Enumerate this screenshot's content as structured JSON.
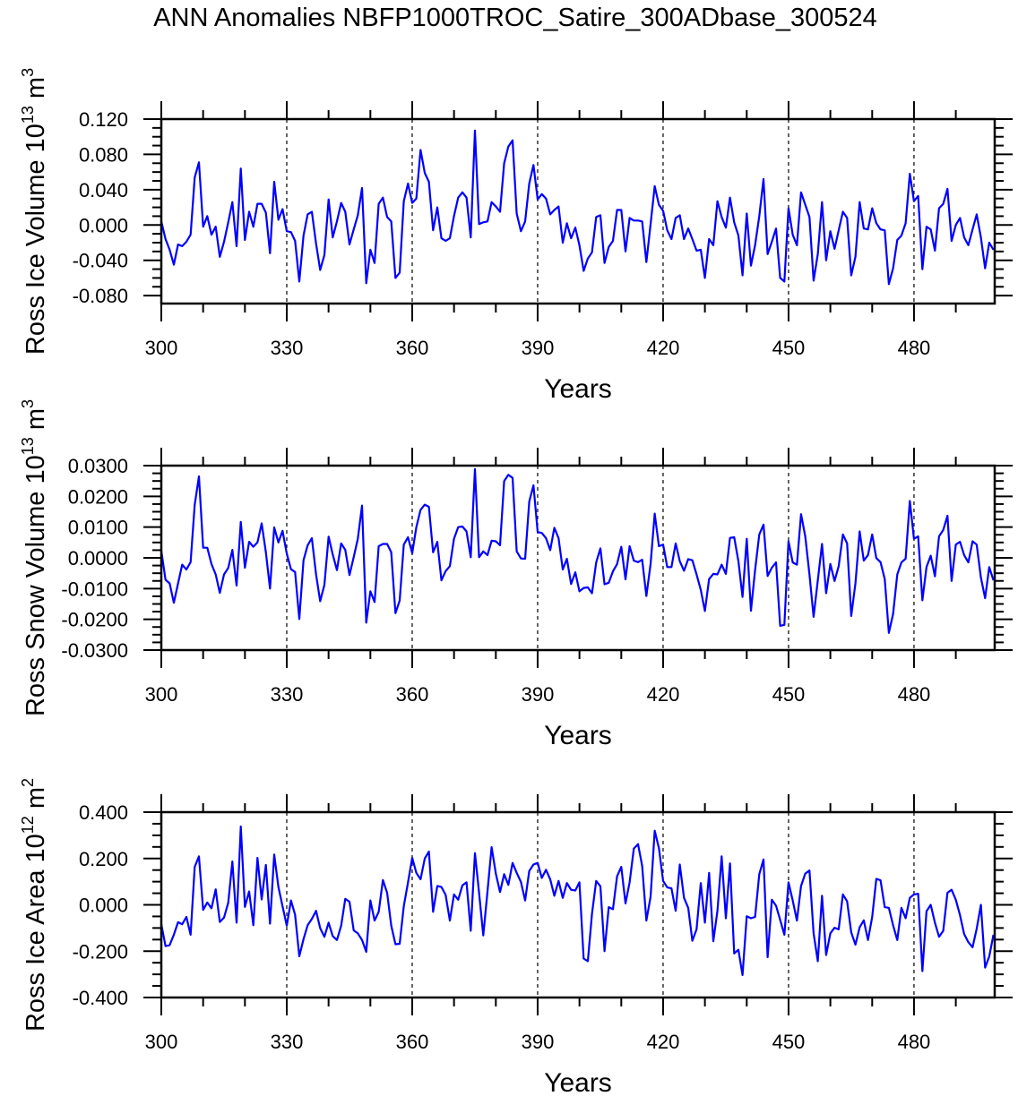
{
  "title": "ANN Anomalies NBFP1000TROC_Satire_300ADbase_300524",
  "colors": {
    "line": "#0000ff",
    "axes": "#000000",
    "refline": "#000000"
  },
  "chart_data": [
    {
      "type": "line",
      "title": "ANN Anomalies NBFP1000TROC_Satire_300ADbase_300524",
      "xlabel": "Years",
      "ylabel": "Ross Ice Volume 10^13 m^3",
      "ylabel_parts": {
        "text": "Ross Ice Volume 10",
        "exp1": "13",
        "unit": " m",
        "exp2": "3"
      },
      "x_start": 300,
      "x_step": 1,
      "xlim": [
        300,
        499.3
      ],
      "ylim": [
        -0.089,
        0.12
      ],
      "xticks": [
        300,
        330,
        360,
        390,
        420,
        450,
        480
      ],
      "xtick_labels": [
        "300",
        "330",
        "360",
        "390",
        "420",
        "450",
        "480"
      ],
      "x_minor_step": 10,
      "yticks": [
        -0.08,
        -0.04,
        0.0,
        0.04,
        0.08,
        0.12
      ],
      "ytick_labels": [
        "-0.080",
        "-0.040",
        "0.000",
        "0.040",
        "0.080",
        "0.120"
      ],
      "y_minor_step": 0.01,
      "ref_lines_x": [
        330,
        360,
        390,
        420,
        450,
        480
      ],
      "values": [
        0.004,
        -0.016,
        -0.028,
        -0.045,
        -0.022,
        -0.024,
        -0.019,
        -0.011,
        0.054,
        0.071,
        -0.002,
        0.01,
        -0.011,
        -0.002,
        -0.036,
        -0.019,
        0.003,
        0.026,
        -0.024,
        0.064,
        -0.017,
        0.015,
        -0.002,
        0.024,
        0.024,
        0.014,
        -0.032,
        0.049,
        0.006,
        0.018,
        -0.007,
        -0.008,
        -0.018,
        -0.064,
        -0.012,
        0.012,
        0.015,
        -0.021,
        -0.051,
        -0.034,
        0.029,
        -0.014,
        0.004,
        0.025,
        0.015,
        -0.022,
        -0.005,
        0.011,
        0.042,
        -0.066,
        -0.028,
        -0.043,
        0.024,
        0.031,
        0.009,
        0.004,
        -0.06,
        -0.054,
        0.027,
        0.047,
        0.025,
        0.03,
        0.085,
        0.059,
        0.049,
        -0.006,
        0.02,
        -0.015,
        -0.018,
        -0.015,
        0.01,
        0.031,
        0.037,
        0.031,
        -0.014,
        0.107,
        0.001,
        0.003,
        0.004,
        0.026,
        0.021,
        0.015,
        0.07,
        0.089,
        0.096,
        0.013,
        -0.007,
        0.004,
        0.047,
        0.068,
        0.029,
        0.035,
        0.03,
        0.012,
        0.017,
        0.021,
        -0.02,
        0.002,
        -0.015,
        -0.003,
        -0.023,
        -0.052,
        -0.038,
        -0.031,
        0.009,
        0.011,
        -0.043,
        -0.025,
        -0.018,
        0.017,
        0.017,
        -0.03,
        0.008,
        0.005,
        0.005,
        0.004,
        -0.042,
        0.001,
        0.044,
        0.023,
        0.016,
        -0.006,
        -0.016,
        0.008,
        0.011,
        -0.016,
        -0.004,
        -0.016,
        -0.029,
        -0.028,
        -0.06,
        -0.016,
        -0.023,
        0.027,
        0.009,
        -0.003,
        0.031,
        0.003,
        -0.012,
        -0.057,
        0.013,
        -0.046,
        -0.023,
        0.01,
        0.052,
        -0.033,
        -0.019,
        -0.004,
        -0.06,
        -0.064,
        0.019,
        -0.011,
        -0.023,
        0.037,
        0.023,
        0.009,
        -0.063,
        -0.033,
        0.026,
        -0.04,
        -0.007,
        -0.027,
        -0.006,
        0.015,
        0.008,
        -0.057,
        -0.036,
        0.026,
        -0.004,
        -0.005,
        0.019,
        0.002,
        -0.005,
        -0.006,
        -0.067,
        -0.049,
        -0.017,
        -0.012,
        0.002,
        0.058,
        0.027,
        0.033,
        -0.05,
        -0.002,
        -0.005,
        -0.029,
        0.019,
        0.024,
        0.041,
        -0.018,
        0.0,
        0.008,
        -0.014,
        -0.023,
        -0.005,
        0.012,
        -0.014,
        -0.049,
        -0.02,
        -0.028
      ]
    },
    {
      "type": "line",
      "xlabel": "Years",
      "ylabel": "Ross Snow Volume 10^13 m^3",
      "ylabel_parts": {
        "text": "Ross Snow Volume 10",
        "exp1": "13",
        "unit": " m",
        "exp2": "3"
      },
      "x_start": 300,
      "x_step": 1,
      "xlim": [
        300,
        499.3
      ],
      "ylim": [
        -0.03,
        0.03
      ],
      "xticks": [
        300,
        330,
        360,
        390,
        420,
        450,
        480
      ],
      "xtick_labels": [
        "300",
        "330",
        "360",
        "390",
        "420",
        "450",
        "480"
      ],
      "x_minor_step": 10,
      "yticks": [
        -0.03,
        -0.02,
        -0.01,
        0.0,
        0.01,
        0.02,
        0.03
      ],
      "ytick_labels": [
        "-0.0300",
        "-0.0200",
        "-0.0100",
        "0.0000",
        "0.0100",
        "0.0200",
        "0.0300"
      ],
      "y_minor_step": 0.0025,
      "ref_lines_x": [
        330,
        360,
        390,
        420,
        450,
        480
      ],
      "values": [
        0.0023,
        -0.0071,
        -0.0083,
        -0.0146,
        -0.0083,
        -0.0022,
        -0.0038,
        -0.0014,
        0.0173,
        0.0265,
        0.0033,
        0.0033,
        -0.002,
        -0.0054,
        -0.0114,
        -0.0054,
        -0.0033,
        0.0026,
        -0.009,
        0.0117,
        -0.0032,
        0.0052,
        0.0036,
        0.005,
        0.0112,
        0.0018,
        -0.01,
        0.0099,
        0.005,
        0.0088,
        0.0014,
        -0.0037,
        -0.0046,
        -0.0199,
        -0.0008,
        0.0041,
        0.0064,
        -0.0054,
        -0.0141,
        -0.0088,
        0.0069,
        0.0011,
        -0.004,
        0.0047,
        0.0026,
        -0.0056,
        0.0002,
        0.0062,
        0.017,
        -0.0211,
        -0.0109,
        -0.0144,
        0.0038,
        0.0045,
        0.0045,
        0.0018,
        -0.018,
        -0.0139,
        0.0043,
        0.0067,
        0.0015,
        0.01,
        0.0156,
        0.0173,
        0.0166,
        0.0018,
        0.0052,
        -0.0073,
        -0.0043,
        -0.0027,
        0.0062,
        0.01,
        0.0102,
        0.0086,
        0.0002,
        0.0289,
        0.0002,
        0.0021,
        0.0009,
        0.0056,
        0.0054,
        0.0041,
        0.025,
        0.027,
        0.026,
        0.0021,
        -0.0002,
        -0.0003,
        0.0183,
        0.0236,
        0.0084,
        0.0081,
        0.0064,
        0.0025,
        0.0098,
        0.0064,
        -0.0038,
        -0.0003,
        -0.0085,
        -0.0047,
        -0.0109,
        -0.0098,
        -0.0096,
        -0.0115,
        -0.0015,
        0.0031,
        -0.0086,
        -0.0081,
        -0.0044,
        -0.002,
        0.0036,
        -0.007,
        0.0038,
        -0.0009,
        -0.0014,
        -0.0006,
        -0.0124,
        -0.002,
        0.0144,
        0.0038,
        0.0043,
        -0.003,
        -0.003,
        0.0047,
        -0.0011,
        -0.0042,
        -0.0004,
        -0.0008,
        -0.0054,
        -0.0104,
        -0.0173,
        -0.0069,
        -0.0052,
        -0.0054,
        -0.0022,
        -0.0052,
        0.0065,
        0.0067,
        -0.0011,
        -0.0127,
        0.0062,
        -0.0172,
        -0.004,
        0.0076,
        0.0108,
        -0.0059,
        -0.0032,
        -0.0015,
        -0.0221,
        -0.0218,
        0.0054,
        -0.0015,
        -0.0022,
        0.0142,
        0.007,
        -0.0054,
        -0.0192,
        -0.0073,
        0.0045,
        -0.0115,
        -0.002,
        -0.0075,
        -0.0027,
        0.0076,
        0.0047,
        -0.0189,
        -0.0083,
        0.0086,
        -0.0009,
        0.0009,
        0.0076,
        -0.0001,
        -0.0014,
        -0.0069,
        -0.0244,
        -0.0183,
        -0.0054,
        -0.0015,
        -0.0003,
        0.0185,
        0.0062,
        0.007,
        -0.0138,
        -0.003,
        0.0007,
        -0.006,
        0.007,
        0.0091,
        0.0137,
        -0.0075,
        0.0043,
        0.0052,
        0.0009,
        -0.0015,
        0.0054,
        0.0043,
        -0.0064,
        -0.0131,
        -0.003,
        -0.0073
      ]
    },
    {
      "type": "line",
      "xlabel": "Years",
      "ylabel": "Ross Ice Area 10^12 m^2",
      "ylabel_parts": {
        "text": "Ross Ice Area 10",
        "exp1": "12",
        "unit": " m",
        "exp2": "2"
      },
      "x_start": 300,
      "x_step": 1,
      "xlim": [
        300,
        499.3
      ],
      "ylim": [
        -0.4,
        0.4
      ],
      "xticks": [
        300,
        330,
        360,
        390,
        420,
        450,
        480
      ],
      "xtick_labels": [
        "300",
        "330",
        "360",
        "390",
        "420",
        "450",
        "480"
      ],
      "x_minor_step": 10,
      "yticks": [
        -0.4,
        -0.2,
        0.0,
        0.2,
        0.4
      ],
      "ytick_labels": [
        "-0.400",
        "-0.200",
        "0.000",
        "0.200",
        "0.400"
      ],
      "y_minor_step": 0.05,
      "ref_lines_x": [
        330,
        360,
        390,
        420,
        450,
        480
      ],
      "values": [
        -0.084,
        -0.178,
        -0.174,
        -0.129,
        -0.075,
        -0.084,
        -0.052,
        -0.129,
        0.164,
        0.209,
        -0.022,
        0.01,
        -0.015,
        0.067,
        -0.074,
        -0.055,
        0.009,
        0.187,
        -0.077,
        0.338,
        -0.009,
        0.058,
        -0.088,
        0.203,
        0.023,
        0.172,
        -0.081,
        0.217,
        0.077,
        -0.006,
        -0.09,
        0.019,
        -0.043,
        -0.222,
        -0.148,
        -0.088,
        -0.061,
        -0.026,
        -0.101,
        -0.138,
        -0.077,
        -0.135,
        -0.152,
        -0.09,
        0.026,
        0.013,
        -0.11,
        -0.123,
        -0.152,
        -0.203,
        0.019,
        -0.068,
        -0.03,
        0.107,
        0.052,
        -0.09,
        -0.17,
        -0.168,
        -0.006,
        0.097,
        0.203,
        0.138,
        0.11,
        0.2,
        0.23,
        -0.03,
        0.081,
        0.077,
        0.043,
        -0.068,
        0.045,
        0.022,
        0.084,
        0.097,
        -0.112,
        0.223,
        0.052,
        -0.132,
        0.058,
        0.249,
        0.135,
        0.055,
        0.132,
        0.086,
        0.181,
        0.138,
        0.099,
        0.019,
        0.146,
        0.174,
        0.181,
        0.116,
        0.151,
        0.11,
        0.039,
        0.103,
        0.03,
        0.094,
        0.065,
        0.062,
        0.097,
        -0.232,
        -0.243,
        -0.039,
        0.103,
        0.08,
        -0.2,
        -0.01,
        -0.019,
        0.123,
        0.164,
        0.006,
        0.097,
        0.243,
        0.262,
        0.168,
        -0.068,
        0.035,
        0.32,
        0.245,
        0.103,
        0.075,
        0.071,
        -0.026,
        0.174,
        0.03,
        -0.013,
        -0.155,
        -0.106,
        0.094,
        -0.077,
        0.138,
        -0.157,
        -0.026,
        0.209,
        -0.058,
        0.179,
        -0.21,
        -0.194,
        -0.303,
        -0.049,
        -0.058,
        -0.052,
        0.132,
        0.196,
        -0.226,
        0.022,
        -0.004,
        -0.065,
        -0.129,
        0.097,
        0.019,
        -0.068,
        0.081,
        0.135,
        0.148,
        -0.123,
        -0.243,
        0.039,
        -0.217,
        -0.123,
        -0.099,
        -0.106,
        0.045,
        0.015,
        -0.119,
        -0.172,
        -0.097,
        -0.067,
        -0.152,
        -0.052,
        0.112,
        0.106,
        -0.01,
        -0.013,
        -0.088,
        -0.152,
        -0.013,
        -0.058,
        0.03,
        0.045,
        0.048,
        -0.286,
        -0.028,
        0.0,
        -0.077,
        -0.138,
        -0.112,
        0.052,
        0.065,
        0.022,
        -0.045,
        -0.126,
        -0.161,
        -0.183,
        -0.103,
        0.0,
        -0.271,
        -0.223,
        -0.129
      ]
    }
  ]
}
